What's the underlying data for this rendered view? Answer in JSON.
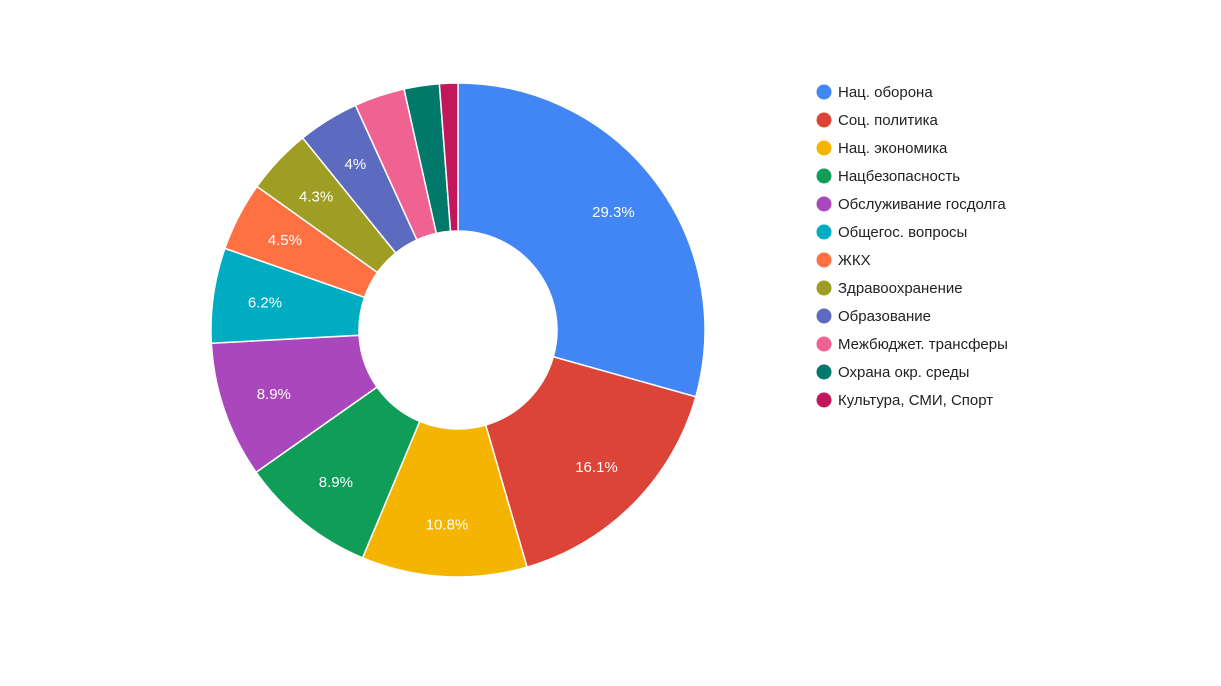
{
  "chart_data": {
    "type": "pie",
    "donut": true,
    "legend_position": "right",
    "show_slice_labels_min_percent": 4,
    "slices": [
      {
        "label": "Нац. оборона",
        "value": 29.3,
        "display": "29.3%",
        "color": "#4285f4"
      },
      {
        "label": "Соц. политика",
        "value": 16.1,
        "display": "16.1%",
        "color": "#db4437"
      },
      {
        "label": "Нац. экономика",
        "value": 10.8,
        "display": "10.8%",
        "color": "#f4b400"
      },
      {
        "label": "Нацбезопасность",
        "value": 8.9,
        "display": "8.9%",
        "color": "#0f9d58"
      },
      {
        "label": "Обслуживание госдолга",
        "value": 8.9,
        "display": "8.9%",
        "color": "#ab47bc"
      },
      {
        "label": "Общегос. вопросы",
        "value": 6.2,
        "display": "6.2%",
        "color": "#00acc1"
      },
      {
        "label": "ЖКХ",
        "value": 4.5,
        "display": "4.5%",
        "color": "#ff7043"
      },
      {
        "label": "Здравоохранение",
        "value": 4.3,
        "display": "4.3%",
        "color": "#9e9d24"
      },
      {
        "label": "Образование",
        "value": 4.0,
        "display": "4%",
        "color": "#5c6bc0"
      },
      {
        "label": "Межбюджет. трансферы",
        "value": 3.3,
        "display": "",
        "color": "#f06292"
      },
      {
        "label": "Охрана окр. среды",
        "value": 2.3,
        "display": "",
        "color": "#00796b"
      },
      {
        "label": "Культура, СМИ, Спорт",
        "value": 1.2,
        "display": "",
        "color": "#c2185b"
      }
    ]
  }
}
